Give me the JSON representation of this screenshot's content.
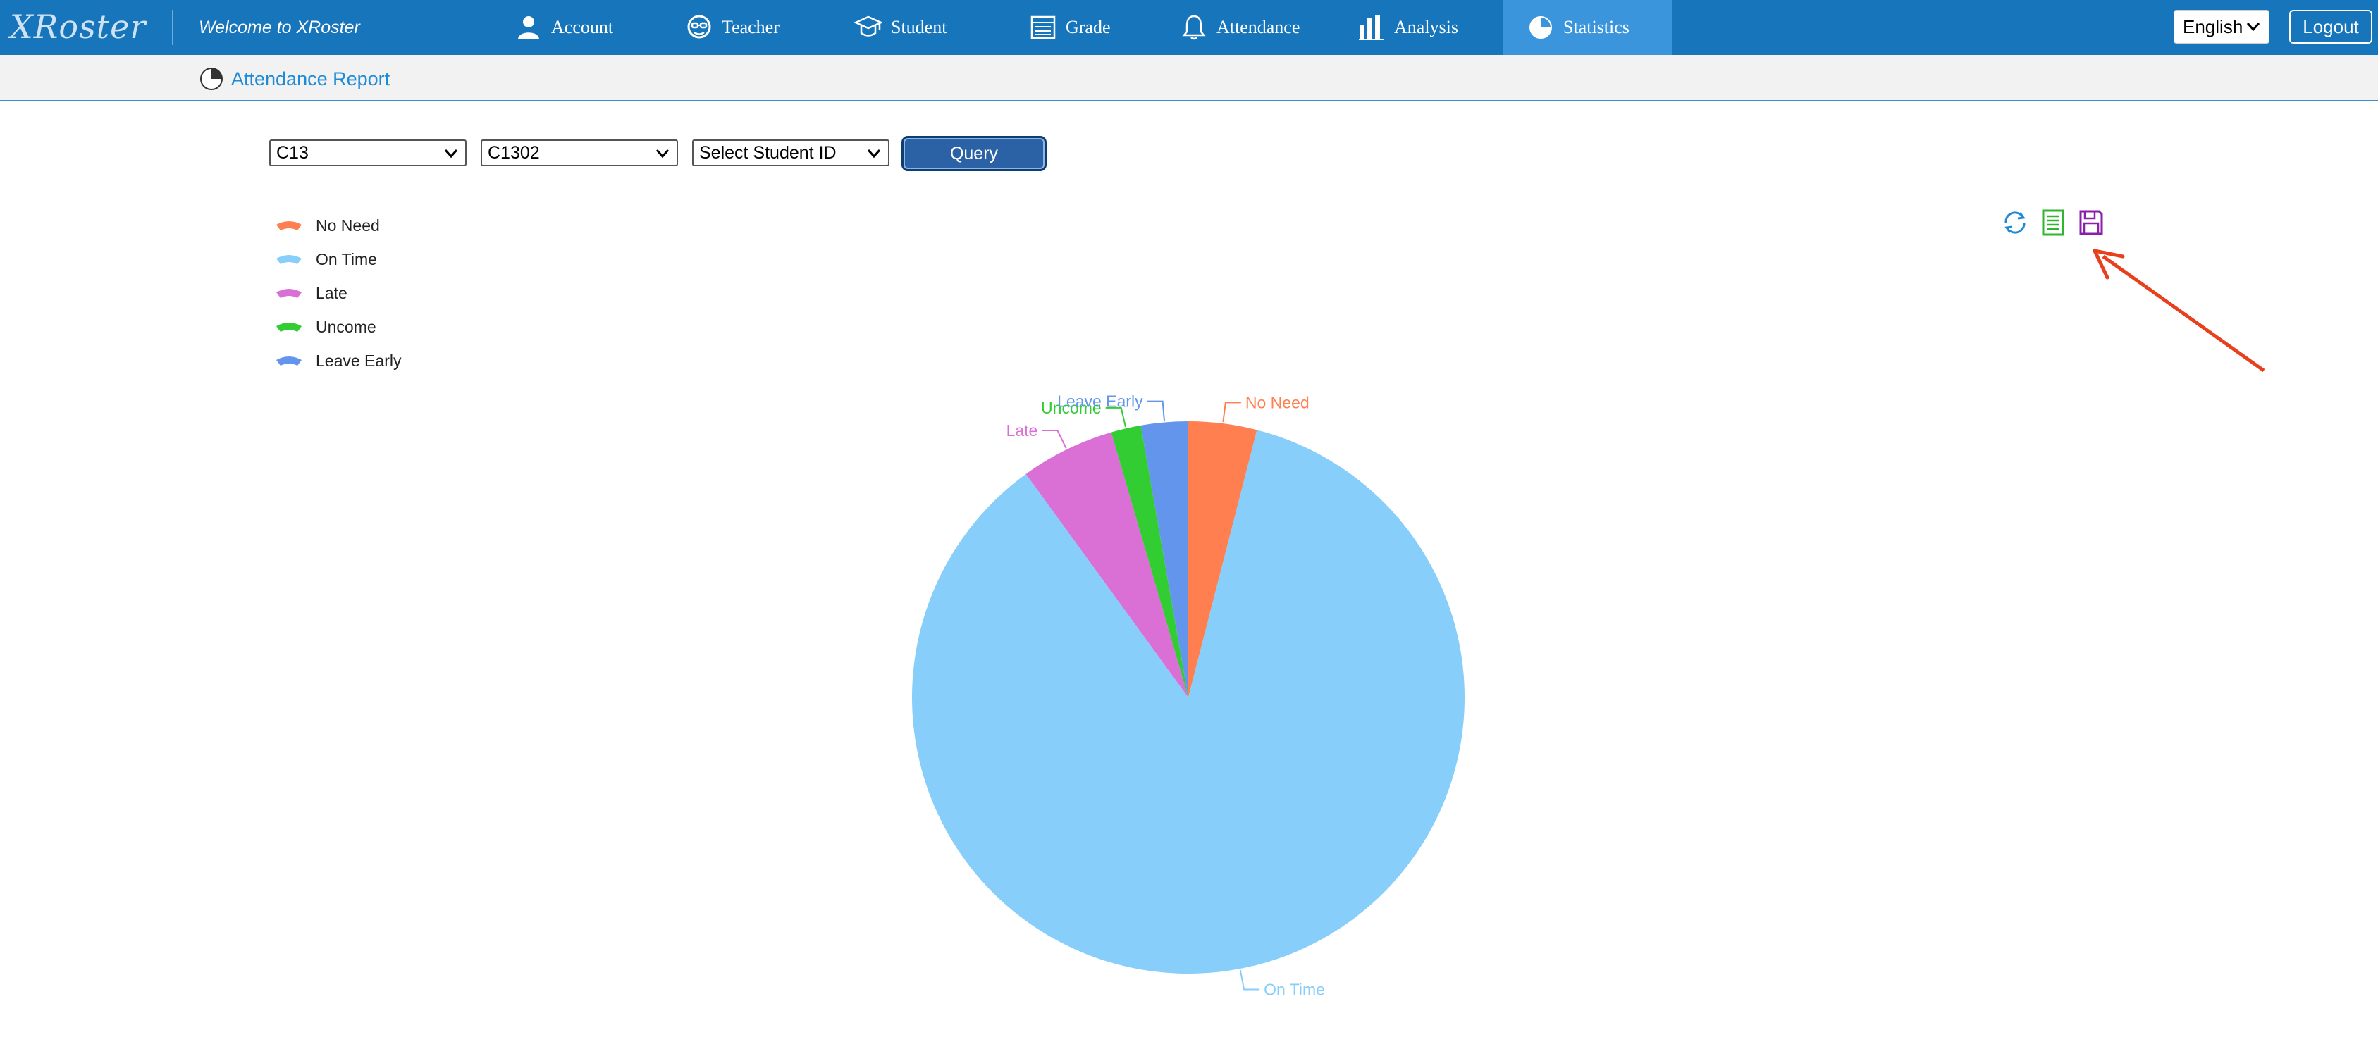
{
  "header": {
    "logo_text": "XRoster",
    "welcome": "Welcome to XRoster",
    "nav": [
      {
        "label": "Account",
        "icon": "user-icon"
      },
      {
        "label": "Teacher",
        "icon": "teacher-icon"
      },
      {
        "label": "Student",
        "icon": "student-cap-icon"
      },
      {
        "label": "Grade",
        "icon": "grade-list-icon"
      },
      {
        "label": "Attendance",
        "icon": "bell-icon"
      },
      {
        "label": "Analysis",
        "icon": "bar-chart-icon"
      },
      {
        "label": "Statistics",
        "icon": "pie-icon",
        "active": true
      }
    ],
    "language": "English",
    "logout": "Logout"
  },
  "breadcrumb": {
    "label": "Attendance Report"
  },
  "filters": {
    "grade": "C13",
    "class": "C1302",
    "student": "Select Student ID",
    "query": "Query"
  },
  "toolbox": [
    "refresh-icon",
    "data-view-icon",
    "save-image-icon"
  ],
  "colors": {
    "brand": "#1775bb",
    "active_nav": "#3b95dd",
    "link": "#1f8ad6",
    "annotation_arrow": "#e8401c"
  },
  "chart_data": {
    "type": "pie",
    "series": [
      {
        "name": "No Need",
        "value": 4,
        "color": "#ff7f50"
      },
      {
        "name": "On Time",
        "value": 86,
        "color": "#87cefa"
      },
      {
        "name": "Late",
        "value": 5.5,
        "color": "#da70d6"
      },
      {
        "name": "Uncome",
        "value": 1.75,
        "color": "#32cd32"
      },
      {
        "name": "Leave Early",
        "value": 2.75,
        "color": "#6495ed"
      }
    ],
    "legend_position": "top-left"
  }
}
